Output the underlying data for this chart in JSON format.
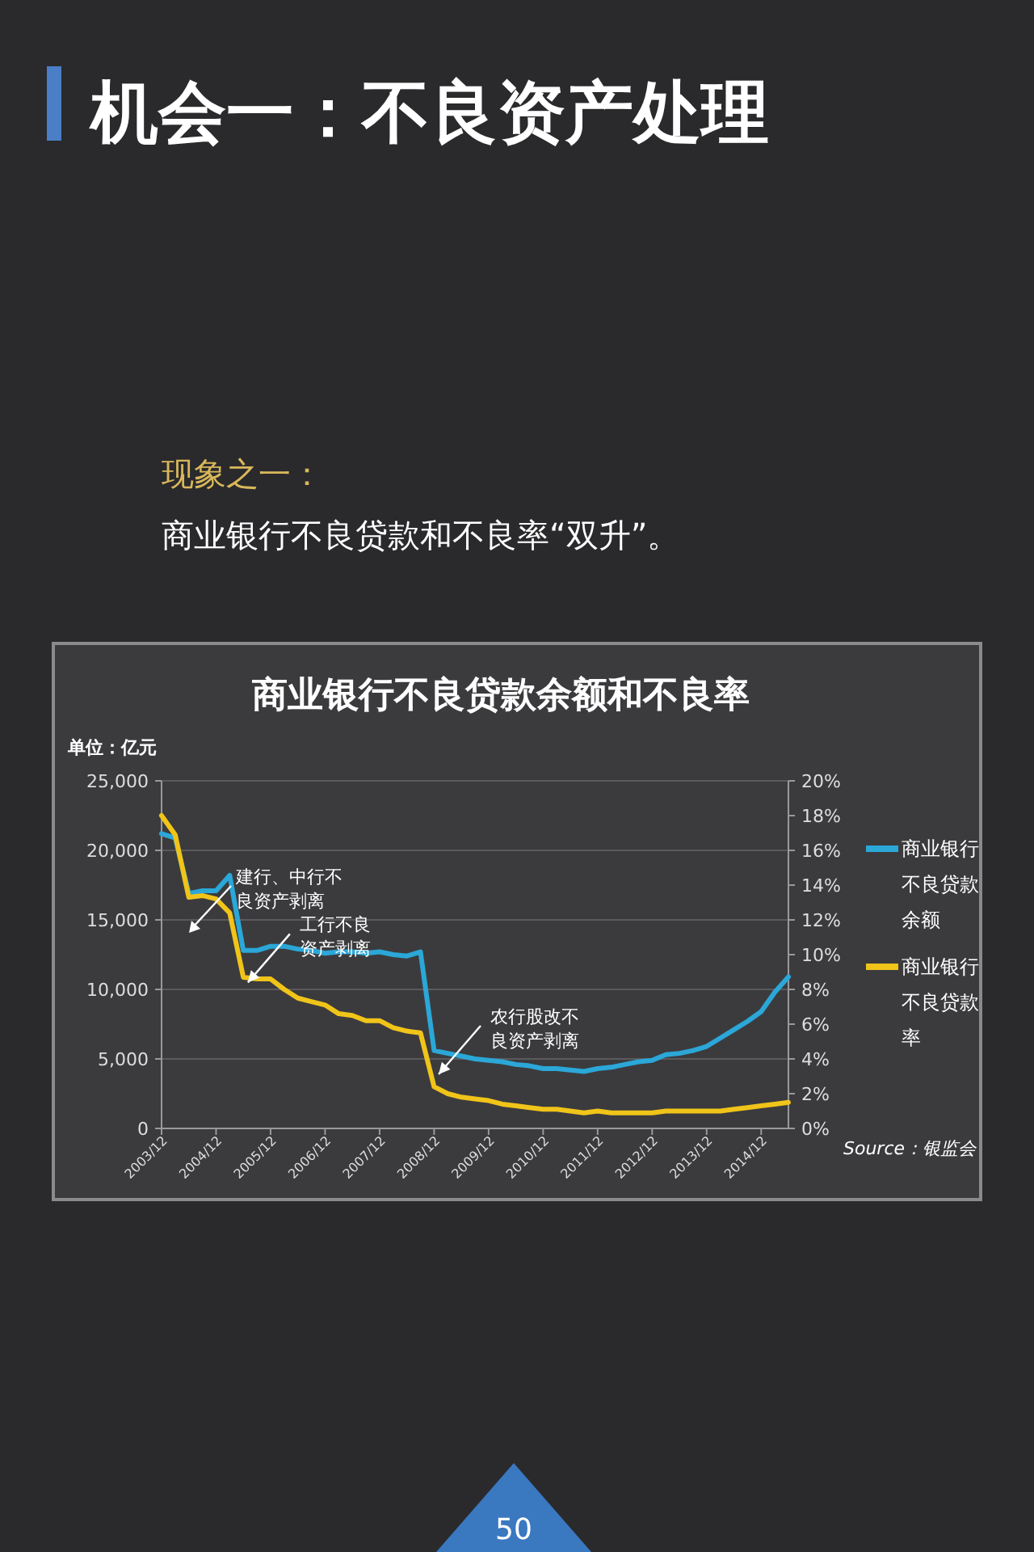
{
  "chart_data": {
    "type": "line",
    "title": "商业银行不良贷款余额和不良率",
    "ylabel": "单位：亿元",
    "x": [
      "2003-12",
      "2004-03",
      "2004-06",
      "2004-09",
      "2004-12",
      "2005-03",
      "2005-06",
      "2005-09",
      "2005-12",
      "2006-03",
      "2006-06",
      "2006-09",
      "2006-12",
      "2007-03",
      "2007-06",
      "2007-09",
      "2007-12",
      "2008-03",
      "2008-06",
      "2008-09",
      "2008-12",
      "2009-03",
      "2009-06",
      "2009-09",
      "2009-12",
      "2010-03",
      "2010-06",
      "2010-09",
      "2010-12",
      "2011-03",
      "2011-06",
      "2011-09",
      "2011-12",
      "2012-03",
      "2012-06",
      "2012-09",
      "2012-12",
      "2013-03",
      "2013-06",
      "2013-09",
      "2013-12",
      "2014-03",
      "2014-06",
      "2014-09",
      "2014-12",
      "2015-03",
      "2015-06"
    ],
    "series": [
      {
        "name": "商业银行不良贷款余额",
        "color": "#2ba7d8",
        "values": [
          21200,
          20900,
          16900,
          17100,
          17100,
          18200,
          12800,
          12800,
          13100,
          13100,
          12900,
          12800,
          12600,
          12700,
          12700,
          12600,
          12700,
          12500,
          12400,
          12700,
          5600,
          5400,
          5200,
          5000,
          4900,
          4800,
          4600,
          4500,
          4300,
          4300,
          4200,
          4100,
          4300,
          4400,
          4600,
          4800,
          4900,
          5300,
          5400,
          5600,
          5900,
          6500,
          7100,
          7700,
          8400,
          9800,
          10900
        ]
      },
      {
        "name": "商业银行不良贷款率",
        "color": "#f0c419",
        "axis": "y2",
        "values": [
          18.0,
          16.9,
          13.3,
          13.4,
          13.2,
          12.4,
          8.7,
          8.6,
          8.6,
          8.0,
          7.5,
          7.3,
          7.1,
          6.6,
          6.5,
          6.2,
          6.2,
          5.8,
          5.6,
          5.5,
          2.4,
          2.0,
          1.8,
          1.7,
          1.6,
          1.4,
          1.3,
          1.2,
          1.1,
          1.1,
          1.0,
          0.9,
          1.0,
          0.9,
          0.9,
          0.9,
          0.9,
          1.0,
          1.0,
          1.0,
          1.0,
          1.0,
          1.1,
          1.2,
          1.3,
          1.4,
          1.5
        ]
      }
    ],
    "xlim": [
      "2003-12",
      "2015-06"
    ],
    "xticks": [
      {
        "value": "2003-12",
        "label": "2003/12"
      },
      {
        "value": "2004-12",
        "label": "2004/12"
      },
      {
        "value": "2005-12",
        "label": "2005/12"
      },
      {
        "value": "2006-12",
        "label": "2006/12"
      },
      {
        "value": "2007-12",
        "label": "2007/12"
      },
      {
        "value": "2008-12",
        "label": "2008/12"
      },
      {
        "value": "2009-12",
        "label": "2009/12"
      },
      {
        "value": "2010-12",
        "label": "2010/12"
      },
      {
        "value": "2011-12",
        "label": "2011/12"
      },
      {
        "value": "2012-12",
        "label": "2012/12"
      },
      {
        "value": "2013-12",
        "label": "2013/12"
      },
      {
        "value": "2014-12",
        "label": "2014/12"
      }
    ],
    "ylim": [
      0,
      25000
    ],
    "yticks": [
      {
        "value": 0,
        "label": "0"
      },
      {
        "value": 5000,
        "label": "5,000"
      },
      {
        "value": 10000,
        "label": "10,000"
      },
      {
        "value": 15000,
        "label": "15,000"
      },
      {
        "value": 20000,
        "label": "20,000"
      },
      {
        "value": 25000,
        "label": "25,000"
      }
    ],
    "y2lim": [
      0,
      20
    ],
    "y2ticks": [
      {
        "value": 0,
        "label": "0%"
      },
      {
        "value": 2,
        "label": "2%"
      },
      {
        "value": 4,
        "label": "4%"
      },
      {
        "value": 6,
        "label": "6%"
      },
      {
        "value": 8,
        "label": "8%"
      },
      {
        "value": 10,
        "label": "10%"
      },
      {
        "value": 12,
        "label": "12%"
      },
      {
        "value": 14,
        "label": "14%"
      },
      {
        "value": 16,
        "label": "16%"
      },
      {
        "value": 18,
        "label": "18%"
      },
      {
        "value": 20,
        "label": "20%"
      }
    ],
    "grid": "y",
    "legend": "right",
    "marker": "none",
    "line_style": "solid",
    "annotations": [
      "机会一：不良资产处理",
      "现象之一：",
      "商业银行不良贷款和不良率“双升”。",
      "建行、中行不良资产剥离",
      {
        "text": "工行不良资产剥离",
        "x": "2005-07",
        "y": 10500
      },
      {
        "text": "农行股改不良资产剥离",
        "x": "2009-01",
        "y": 3900
      },
      "Source：银监会",
      "50"
    ]
  }
}
